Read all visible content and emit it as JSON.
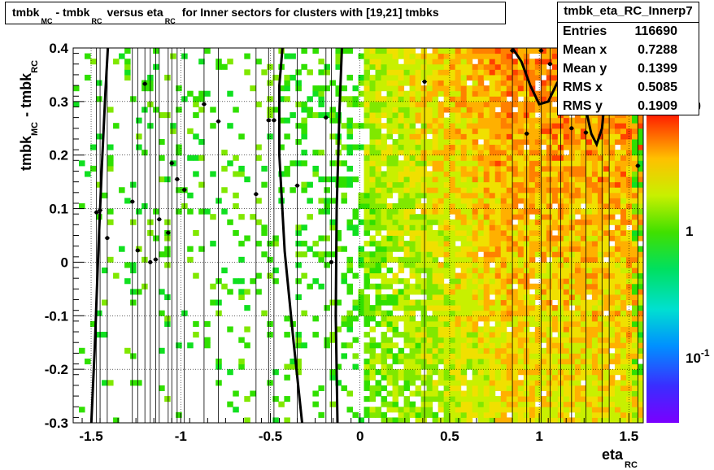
{
  "title": {
    "parts": [
      "tmbk",
      "MC",
      "- tmbk",
      "RC",
      "versus eta",
      "RC",
      "for Inner sectors for clusters with [19,21] tmbks"
    ]
  },
  "stats": {
    "name": "tmbk_eta_RC_Innerp7",
    "rows": [
      {
        "label": "Entries",
        "value": "116690"
      },
      {
        "label": "Mean x",
        "value": "0.7288"
      },
      {
        "label": "Mean y",
        "value": "0.1399"
      },
      {
        "label": "RMS x",
        "value": "0.5085"
      },
      {
        "label": "RMS y",
        "value": "0.1909"
      }
    ]
  },
  "colorbar": {
    "labels": [
      "10",
      "1",
      "10"
    ],
    "label_exponents": [
      "",
      "",
      "-1"
    ]
  },
  "chart_data": {
    "type": "heatmap",
    "title": "tmbk_MC - tmbk_RC versus eta_RC for Inner sectors for clusters with [19,21] tmbks",
    "xlabel": "eta",
    "xlabel_sub": "RC",
    "ylabel": "tmbk",
    "ylabel_sub1": "MC",
    "ylabel_mid": "- tmbk",
    "ylabel_sub2": "RC",
    "xlim": [
      -1.6,
      1.58
    ],
    "ylim": [
      -0.3,
      0.4
    ],
    "x_ticks": [
      -1.5,
      -1,
      -0.5,
      0,
      0.5,
      1,
      1.5
    ],
    "x_tick_labels": [
      "-1.5",
      "-1",
      "-0.5",
      "0",
      "0.5",
      "1",
      "1.5"
    ],
    "y_ticks": [
      -0.3,
      -0.2,
      -0.1,
      0,
      0.1,
      0.2,
      0.3,
      0.4
    ],
    "y_tick_labels": [
      "-0.3",
      "-0.2",
      "-0.1",
      "0",
      "0.1",
      "0.2",
      "0.3",
      "0.4"
    ],
    "z_scale": "log",
    "zlim": [
      0.03,
      20
    ],
    "grid": true,
    "profile_points": [
      {
        "x": -1.47,
        "y": 0.093
      },
      {
        "x": -1.45,
        "y": 0.097
      },
      {
        "x": -1.41,
        "y": 0.045
      },
      {
        "x": -1.27,
        "y": 0.113
      },
      {
        "x": -1.24,
        "y": 0.022
      },
      {
        "x": -1.2,
        "y": 0.333
      },
      {
        "x": -1.17,
        "y": 0.0
      },
      {
        "x": -1.14,
        "y": 0.005
      },
      {
        "x": -1.12,
        "y": 0.08
      },
      {
        "x": -1.07,
        "y": 0.055
      },
      {
        "x": -1.05,
        "y": 0.185
      },
      {
        "x": -1.02,
        "y": 0.155
      },
      {
        "x": -0.98,
        "y": 0.135
      },
      {
        "x": -0.87,
        "y": 0.295
      },
      {
        "x": -0.79,
        "y": 0.263
      },
      {
        "x": -0.58,
        "y": 0.127
      },
      {
        "x": -0.51,
        "y": 0.265
      },
      {
        "x": -0.48,
        "y": 0.265
      },
      {
        "x": -0.35,
        "y": 0.143
      },
      {
        "x": -0.19,
        "y": 0.27
      },
      {
        "x": -0.16,
        "y": 0.0
      },
      {
        "x": 0.36,
        "y": 0.337
      },
      {
        "x": 0.85,
        "y": 0.395
      },
      {
        "x": 0.93,
        "y": 0.24
      },
      {
        "x": 1.01,
        "y": 0.395
      },
      {
        "x": 1.06,
        "y": 0.37
      },
      {
        "x": 1.12,
        "y": 0.38
      },
      {
        "x": 1.18,
        "y": 0.25
      },
      {
        "x": 1.26,
        "y": 0.242
      },
      {
        "x": 1.35,
        "y": 0.28
      },
      {
        "x": 1.39,
        "y": 0.385
      },
      {
        "x": 1.55,
        "y": 0.18
      }
    ],
    "fit_curve_1": [
      [
        -1.5,
        -0.31
      ],
      [
        -1.48,
        -0.16
      ],
      [
        -1.46,
        0.02
      ],
      [
        -1.44,
        0.18
      ],
      [
        -1.42,
        0.32
      ],
      [
        -1.405,
        0.41
      ]
    ],
    "fit_curve_2": [
      [
        -0.43,
        0.41
      ],
      [
        -0.45,
        0.33
      ],
      [
        -0.45,
        0.2
      ],
      [
        -0.42,
        0.02
      ],
      [
        -0.37,
        -0.15
      ],
      [
        -0.32,
        -0.31
      ]
    ],
    "fit_curve_3": [
      [
        -0.1,
        0.41
      ],
      [
        -0.115,
        0.28
      ],
      [
        -0.13,
        0.1
      ],
      [
        -0.135,
        -0.1
      ],
      [
        -0.125,
        -0.31
      ]
    ],
    "fit_curve_4": [
      [
        0.85,
        0.4
      ],
      [
        0.9,
        0.375
      ],
      [
        0.95,
        0.33
      ],
      [
        1.0,
        0.295
      ],
      [
        1.05,
        0.3
      ],
      [
        1.1,
        0.335
      ],
      [
        1.15,
        0.355
      ],
      [
        1.2,
        0.34
      ],
      [
        1.25,
        0.3
      ],
      [
        1.29,
        0.24
      ],
      [
        1.32,
        0.22
      ],
      [
        1.35,
        0.25
      ],
      [
        1.37,
        0.32
      ],
      [
        1.38,
        0.41
      ]
    ]
  }
}
